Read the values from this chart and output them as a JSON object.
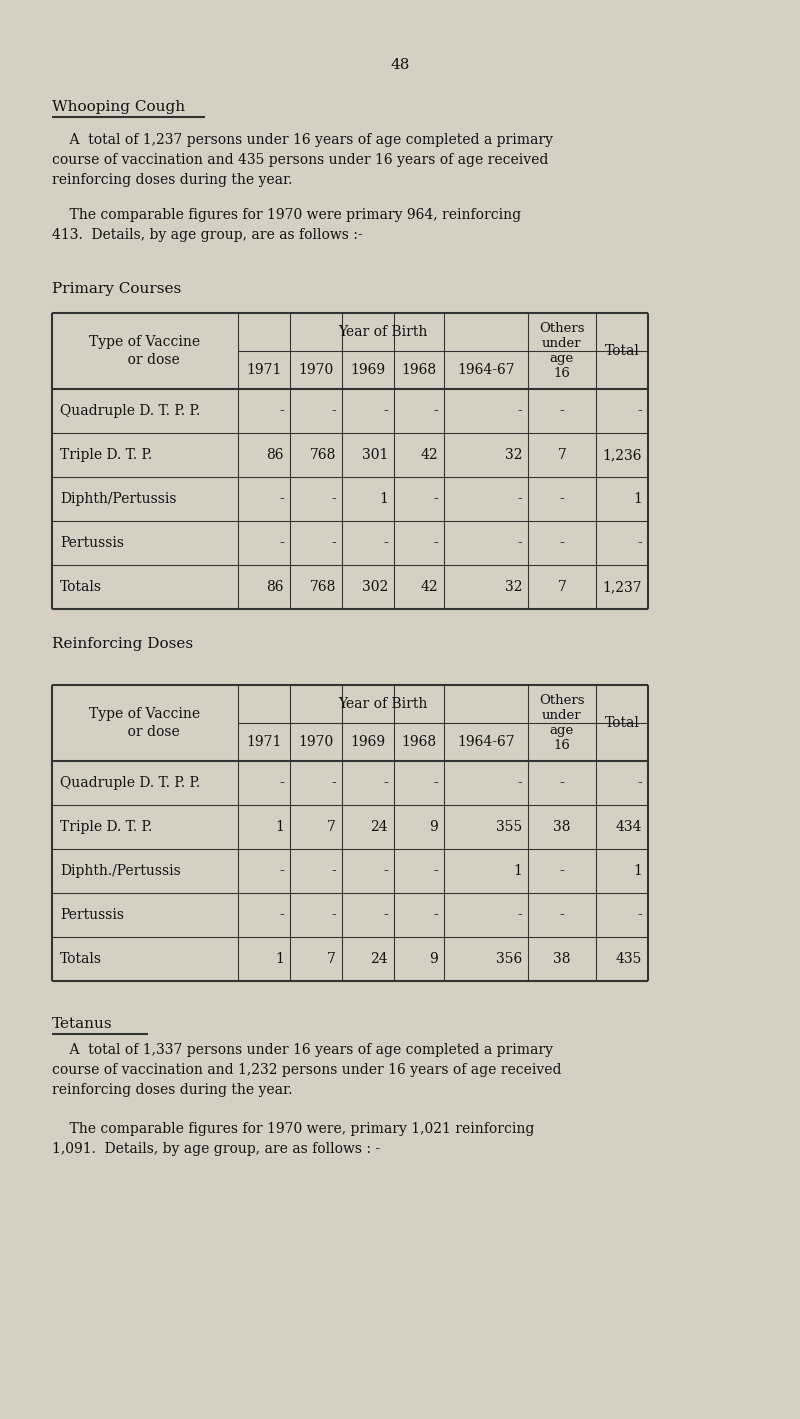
{
  "page_number": "48",
  "bg_color": "#d6d0c4",
  "section1_title": "Whooping Cough",
  "section1_para1": "    A  total of 1,237 persons under 16 years of age completed a primary\ncourse of vaccination and 435 persons under 16 years of age received\nreinforcing doses during the year.",
  "section1_para2": "    The comparable figures for 1970 were primary 964, reinforcing\n413.  Details, by age group, are as follows :-",
  "primary_label": "Primary Courses",
  "reinforcing_label": "Reinforcing Doses",
  "primary_rows": [
    [
      "Quadruple D. T. P. P.",
      "-",
      "-",
      "-",
      "-",
      "-",
      "-",
      "-"
    ],
    [
      "Triple D. T. P.",
      "86",
      "768",
      "301",
      "42",
      "32",
      "7",
      "1,236"
    ],
    [
      "Diphth/Pertussis",
      "-",
      "-",
      "1",
      "-",
      "-",
      "-",
      "1"
    ],
    [
      "Pertussis",
      "-",
      "-",
      "-",
      "-",
      "-",
      "-",
      "-"
    ],
    [
      "Totals",
      "86",
      "768",
      "302",
      "42",
      "32",
      "7",
      "1,237"
    ]
  ],
  "reinforcing_rows": [
    [
      "Quadruple D. T. P. P.",
      "-",
      "-",
      "-",
      "-",
      "-",
      "-",
      "-"
    ],
    [
      "Triple D. T. P.",
      "1",
      "7",
      "24",
      "9",
      "355",
      "38",
      "434"
    ],
    [
      "Diphth./Pertussis",
      "-",
      "-",
      "-",
      "-",
      "1",
      "-",
      "1"
    ],
    [
      "Pertussis",
      "-",
      "-",
      "-",
      "-",
      "-",
      "-",
      "-"
    ],
    [
      "Totals",
      "1",
      "7",
      "24",
      "9",
      "356",
      "38",
      "435"
    ]
  ],
  "section2_title": "Tetanus",
  "section2_para1": "    A  total of 1,337 persons under 16 years of age completed a primary\ncourse of vaccination and 1,232 persons under 16 years of age received\nreinforcing doses during the year.",
  "section2_para2": "    The comparable figures for 1970 were, primary 1,021 reinforcing\n1,091.  Details, by age group, are as follows : -",
  "text_color": "#111111",
  "line_color": "#333333"
}
